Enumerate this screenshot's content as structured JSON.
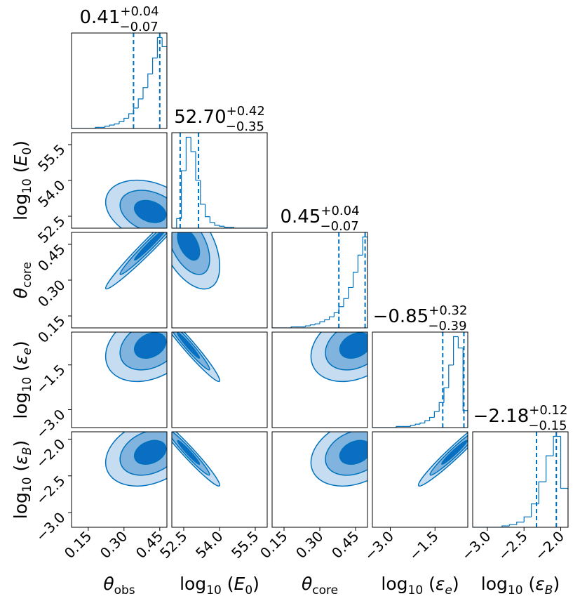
{
  "chart_data": {
    "type": "corner",
    "color": "#0072bd",
    "contour_fills": [
      "#c6dcf0",
      "#80b3dd",
      "#0a6fc2"
    ],
    "params": [
      {
        "label": [
          {
            "text": "θ",
            "italic": true
          },
          {
            "text": "obs",
            "sub": true
          }
        ],
        "median": {
          "value": 0.41,
          "label": "0.41"
        },
        "upper": {
          "value": 0.04,
          "label": "+0.04"
        },
        "lower": {
          "value": -0.07,
          "label": "−0.07"
        },
        "lim": [
          0.08,
          0.48
        ],
        "ticks": [
          0.15,
          {
            "value": 0.3,
            "label": "0.30"
          },
          0.45
        ],
        "bins": [
          0.08,
          0.1,
          0.12,
          0.14,
          0.16,
          0.18,
          0.2,
          0.22,
          0.24,
          0.26,
          0.28,
          0.3,
          0.32,
          0.34,
          0.36,
          0.38,
          0.4,
          0.42,
          0.44,
          0.46,
          0.48
        ],
        "counts": [
          0,
          0,
          0,
          0,
          0,
          1,
          1,
          2,
          3,
          4,
          6,
          9,
          13,
          18,
          26,
          36,
          48,
          62,
          80,
          72
        ]
      },
      {
        "label": [
          {
            "text": "log"
          },
          {
            "text": "10",
            "sub": true
          },
          {
            "text": " ("
          },
          {
            "text": "E",
            "italic": true
          },
          {
            "text": "0",
            "sub": true
          },
          {
            "text": ")"
          }
        ],
        "median": {
          "value": 52.7,
          "label": "52.70"
        },
        "upper": {
          "value": 0.42,
          "label": "+0.42"
        },
        "lower": {
          "value": -0.35,
          "label": "−0.35"
        },
        "lim": [
          52.0,
          56.0
        ],
        "ticks": [
          52.5,
          {
            "value": 54.0,
            "label": "54.0"
          },
          55.5
        ],
        "bins": [
          52.0,
          52.2,
          52.4,
          52.6,
          52.8,
          53.0,
          53.2,
          53.4,
          53.6,
          53.8,
          54.0,
          54.2,
          54.4,
          54.6,
          54.8,
          55.0,
          55.2,
          55.4,
          55.6,
          55.8,
          56.0
        ],
        "counts": [
          0,
          10,
          60,
          95,
          80,
          50,
          25,
          12,
          6,
          3,
          2,
          1,
          1,
          0,
          0,
          0,
          0,
          0,
          0,
          0
        ]
      },
      {
        "label": [
          {
            "text": "θ",
            "italic": true
          },
          {
            "text": "core",
            "sub": true
          }
        ],
        "median": {
          "value": 0.45,
          "label": "0.45"
        },
        "upper": {
          "value": 0.04,
          "label": "+0.04"
        },
        "lower": {
          "value": -0.07,
          "label": "−0.07"
        },
        "lim": [
          0.1,
          0.5
        ],
        "ticks": [
          0.15,
          {
            "value": 0.3,
            "label": "0.30"
          },
          0.45
        ],
        "bins": [
          0.1,
          0.12,
          0.14,
          0.16,
          0.18,
          0.2,
          0.22,
          0.24,
          0.26,
          0.28,
          0.3,
          0.32,
          0.34,
          0.36,
          0.38,
          0.4,
          0.42,
          0.44,
          0.46,
          0.48,
          0.5
        ],
        "counts": [
          0,
          0,
          0,
          0,
          1,
          1,
          1,
          2,
          3,
          4,
          6,
          8,
          11,
          15,
          21,
          29,
          40,
          55,
          72,
          90
        ]
      },
      {
        "label": [
          {
            "text": "log"
          },
          {
            "text": "10",
            "sub": true
          },
          {
            "text": " ("
          },
          {
            "text": "ε",
            "italic": true
          },
          {
            "text": "e",
            "sub": true,
            "italic": true
          },
          {
            "text": ")"
          }
        ],
        "median": {
          "value": -0.85,
          "label": "−0.85"
        },
        "upper": {
          "value": 0.32,
          "label": "+0.32"
        },
        "lower": {
          "value": -0.39,
          "label": "−0.39"
        },
        "lim": [
          -3.6,
          -0.4
        ],
        "ticks": [
          {
            "value": -3.0,
            "label": "−3.0"
          },
          {
            "value": -1.5,
            "label": "−1.5"
          }
        ],
        "bins": [
          -3.6,
          -3.44,
          -3.28,
          -3.12,
          -2.96,
          -2.8,
          -2.64,
          -2.48,
          -2.32,
          -2.16,
          -2.0,
          -1.84,
          -1.68,
          -1.52,
          -1.36,
          -1.2,
          -1.04,
          -0.88,
          -0.72,
          -0.56,
          -0.4
        ],
        "counts": [
          0,
          0,
          0,
          0,
          0,
          1,
          1,
          1,
          2,
          3,
          4,
          6,
          9,
          14,
          22,
          35,
          55,
          80,
          70,
          15
        ]
      },
      {
        "label": [
          {
            "text": "log"
          },
          {
            "text": "10",
            "sub": true
          },
          {
            "text": " ("
          },
          {
            "text": "ε",
            "italic": true
          },
          {
            "text": "B",
            "sub": true,
            "italic": true
          },
          {
            "text": ")"
          }
        ],
        "median": {
          "value": -2.18,
          "label": "−2.18"
        },
        "upper": {
          "value": 0.12,
          "label": "+0.12"
        },
        "lower": {
          "value": -0.15,
          "label": "−0.15"
        },
        "lim": [
          -3.2,
          -1.9
        ],
        "ticks": [
          {
            "value": -3.0,
            "label": "−3.0"
          },
          {
            "value": -2.5,
            "label": "−2.5"
          },
          {
            "value": -2.0,
            "label": "−2.0"
          }
        ],
        "bins": [
          -3.2,
          -3.1,
          -3.0,
          -2.9,
          -2.8,
          -2.7,
          -2.6,
          -2.5,
          -2.4,
          -2.3,
          -2.2,
          -2.1,
          -2.0,
          -1.9
        ],
        "counts": [
          0,
          0,
          0,
          0,
          1,
          2,
          4,
          8,
          18,
          35,
          55,
          70,
          30
        ]
      }
    ],
    "pairs": [
      {
        "x": 0,
        "y": 1,
        "rho": -0.3
      },
      {
        "x": 0,
        "y": 2,
        "rho": 0.98
      },
      {
        "x": 1,
        "y": 2,
        "rho": -0.5
      },
      {
        "x": 0,
        "y": 3,
        "rho": 0.3
      },
      {
        "x": 1,
        "y": 3,
        "rho": -0.97
      },
      {
        "x": 2,
        "y": 3,
        "rho": 0.3
      },
      {
        "x": 0,
        "y": 4,
        "rho": 0.3
      },
      {
        "x": 1,
        "y": 4,
        "rho": -0.97
      },
      {
        "x": 2,
        "y": 4,
        "rho": 0.3
      },
      {
        "x": 3,
        "y": 4,
        "rho": 0.97
      }
    ]
  }
}
